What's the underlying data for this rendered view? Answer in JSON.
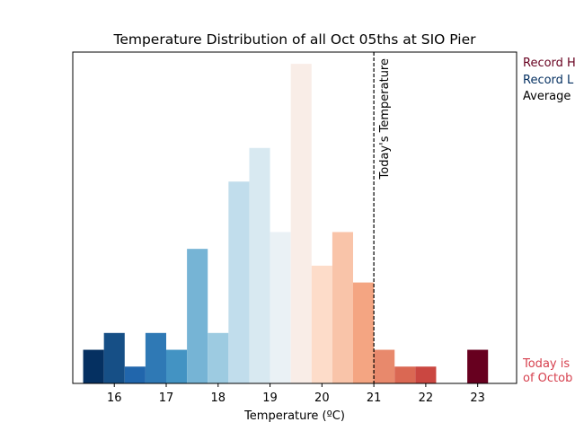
{
  "chart_data": {
    "type": "bar",
    "title": "Temperature Distribution of all Oct 05ths at SIO Pier",
    "xlabel": "Temperature (ºC)",
    "ylabel": "",
    "xlim": [
      15.2,
      23.75
    ],
    "ylim": [
      0,
      19.7
    ],
    "xticks": [
      "16",
      "17",
      "18",
      "19",
      "20",
      "21",
      "22",
      "23"
    ],
    "bin_width": 0.4,
    "bars": [
      {
        "center": 15.6,
        "count": 2,
        "color": "#053061"
      },
      {
        "center": 16.0,
        "count": 3,
        "color": "#164f86"
      },
      {
        "center": 16.4,
        "count": 1,
        "color": "#2166ac"
      },
      {
        "center": 16.8,
        "count": 3,
        "color": "#2f79b5"
      },
      {
        "center": 17.2,
        "count": 2,
        "color": "#4393c3"
      },
      {
        "center": 17.6,
        "count": 8,
        "color": "#76b4d5"
      },
      {
        "center": 18.0,
        "count": 3,
        "color": "#9dcbe1"
      },
      {
        "center": 18.4,
        "count": 12,
        "color": "#c1ddec"
      },
      {
        "center": 18.8,
        "count": 14,
        "color": "#d8e9f1"
      },
      {
        "center": 19.2,
        "count": 9,
        "color": "#eaf1f5"
      },
      {
        "center": 19.6,
        "count": 19,
        "color": "#f9ede7"
      },
      {
        "center": 20.0,
        "count": 7,
        "color": "#fddcc9"
      },
      {
        "center": 20.4,
        "count": 9,
        "color": "#f9c4a9"
      },
      {
        "center": 20.8,
        "count": 6,
        "color": "#f4a582"
      },
      {
        "center": 21.2,
        "count": 2,
        "color": "#e8896c"
      },
      {
        "center": 21.6,
        "count": 1,
        "color": "#da6853"
      },
      {
        "center": 22.0,
        "count": 1,
        "color": "#ca4741"
      },
      {
        "center": 23.0,
        "count": 2,
        "color": "#67001f"
      }
    ],
    "today_line": {
      "x": 21.0,
      "label": "Today's Temperature"
    }
  },
  "legend": {
    "record_high": {
      "text": "Record H",
      "color": "#67001f"
    },
    "record_low": {
      "text": "Record L",
      "color": "#053061"
    },
    "average": {
      "text": "Average",
      "color": "#000000"
    },
    "today_note_line1": {
      "text": "Today is",
      "color": "#d6404e"
    },
    "today_note_line2": {
      "text": "of Octob",
      "color": "#d6404e"
    }
  }
}
